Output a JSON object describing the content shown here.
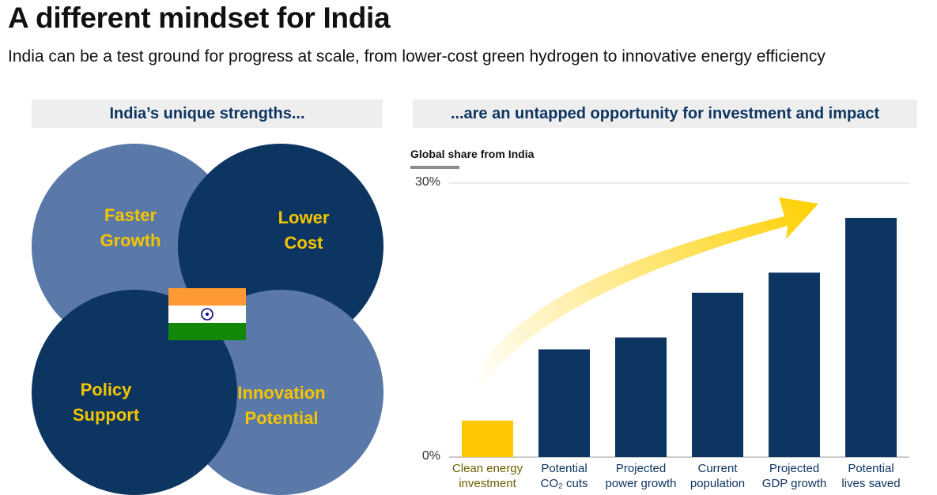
{
  "page": {
    "title": "A different mindset for India",
    "subtitle": "India can be a test ground for progress at scale, from lower-cost green hydrogen to innovative energy efficiency"
  },
  "left_panel": {
    "header": "India’s unique strengths...",
    "circles": [
      {
        "label": "Faster\nGrowth",
        "color": "#5a79a8"
      },
      {
        "label": "Lower\nCost",
        "color": "#0d3561"
      },
      {
        "label": "Policy\nSupport",
        "color": "#0d3561"
      },
      {
        "label": "Innovation\nPotential",
        "color": "#5a79a8"
      }
    ],
    "label_color": "#f5c400",
    "flag": {
      "icon": "india-flag-icon",
      "colors": [
        "#ff9933",
        "#ffffff",
        "#138808"
      ],
      "wheel_color": "#000080"
    }
  },
  "right_panel": {
    "header": "...are an untapped opportunity for investment and impact"
  },
  "chart_data": {
    "type": "bar",
    "title": "",
    "ylabel": "Global share from India",
    "xlabel": "",
    "ylim": [
      0,
      30
    ],
    "yticks": [
      {
        "value": 0,
        "label": "0%"
      },
      {
        "value": 30,
        "label": "30%"
      }
    ],
    "categories": [
      "Clean energy\ninvestment",
      "Potential\nCO₂ cuts",
      "Projected\npower growth",
      "Current\npopulation",
      "Projected\nGDP growth",
      "Potential\nlives saved"
    ],
    "values": [
      4,
      11.8,
      13.1,
      18,
      20.2,
      26.2
    ],
    "bar_colors": [
      "#ffc800",
      "#0d3561",
      "#0d3561",
      "#0d3561",
      "#0d3561",
      "#0d3561"
    ],
    "label_colors": [
      "#6b5e00",
      "#0d3561",
      "#0d3561",
      "#0d3561",
      "#0d3561",
      "#0d3561"
    ],
    "grid": false,
    "annotation": "upward-trend-arrow",
    "arrow_color": "#ffd000"
  }
}
